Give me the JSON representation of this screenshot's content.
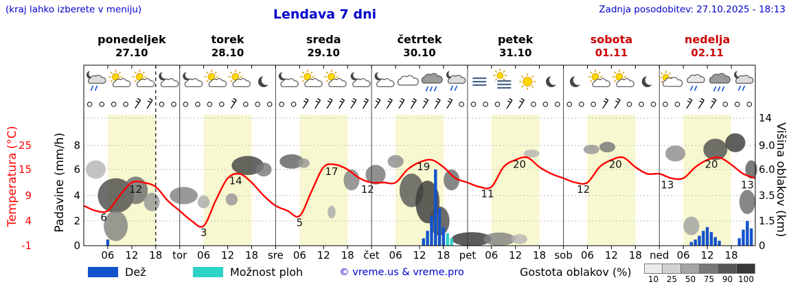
{
  "header": {
    "hint": "(kraj lahko izberete v meniju)",
    "title": "Lendava 7 dni",
    "updated": "Zadnja posodobitev: 27.10.2025 - 18:13"
  },
  "axis_titles": {
    "left_temp": "Temperatura (°C)",
    "left_precip": "Padavine (mm/h)",
    "right_height": "Višina oblakov (km)"
  },
  "days": [
    {
      "name": "ponedeljek",
      "date": "27.10",
      "weekend": false
    },
    {
      "name": "torek",
      "date": "28.10",
      "weekend": false
    },
    {
      "name": "sreda",
      "date": "29.10",
      "weekend": false
    },
    {
      "name": "četrtek",
      "date": "30.10",
      "weekend": false
    },
    {
      "name": "petek",
      "date": "31.10",
      "weekend": false
    },
    {
      "name": "sobota",
      "date": "01.11",
      "weekend": true
    },
    {
      "name": "nedelja",
      "date": "02.11",
      "weekend": true
    }
  ],
  "x_axis": {
    "hour_labels": [
      "06",
      "12",
      "18"
    ],
    "day_boundaries": [
      "tor",
      "sre",
      "čet",
      "pet",
      "sob",
      "ned"
    ]
  },
  "legend": {
    "rain_label": "Dež",
    "showers_label": "Možnost ploh",
    "copyright": "© vreme.us & vreme.pro",
    "density_label": "Gostota oblakov (%)",
    "density_levels": [
      "10",
      "25",
      "50",
      "75",
      "90",
      "100"
    ],
    "density_colors": [
      "#ebebeb",
      "#d2d2d2",
      "#a6a6a6",
      "#787878",
      "#555555",
      "#383838"
    ]
  },
  "colors": {
    "accent_blue": "#0000cc",
    "weekend_red": "#cc0000",
    "temperature": "#ff0000",
    "rain": "#1353cc",
    "showers": "#2ed3c7",
    "band_yellow": "#f8f8d0"
  },
  "chart_data": {
    "type": "line",
    "title": "Lendava 7 dni",
    "x_range_hours": [
      0,
      168
    ],
    "now_hour": 18,
    "temp_axis_ticks": [
      25,
      15,
      9,
      4,
      -1
    ],
    "precip_axis_ticks": [
      8,
      6,
      4,
      2,
      0
    ],
    "height_axis_ticks": [
      {
        "label": "14",
        "v": 14
      },
      {
        "label": "9.0",
        "v": 9
      },
      {
        "label": "6.0",
        "v": 6
      },
      {
        "label": "3.5",
        "v": 3.5
      },
      {
        "label": "1.5",
        "v": 1.5
      },
      {
        "label": "0",
        "v": 0
      }
    ],
    "temperature_points": [
      [
        0,
        7
      ],
      [
        3,
        6
      ],
      [
        6,
        6
      ],
      [
        9,
        9
      ],
      [
        12,
        12
      ],
      [
        15,
        12
      ],
      [
        18,
        11
      ],
      [
        21,
        8
      ],
      [
        24,
        6
      ],
      [
        27,
        4
      ],
      [
        30,
        3
      ],
      [
        33,
        8
      ],
      [
        36,
        13
      ],
      [
        39,
        14
      ],
      [
        42,
        12
      ],
      [
        45,
        9
      ],
      [
        48,
        7
      ],
      [
        51,
        6
      ],
      [
        54,
        5
      ],
      [
        57,
        10
      ],
      [
        60,
        16
      ],
      [
        63,
        17
      ],
      [
        66,
        15
      ],
      [
        69,
        13
      ],
      [
        72,
        12
      ],
      [
        75,
        12
      ],
      [
        78,
        12
      ],
      [
        81,
        15
      ],
      [
        84,
        18
      ],
      [
        87,
        19
      ],
      [
        90,
        16
      ],
      [
        93,
        13
      ],
      [
        96,
        12
      ],
      [
        99,
        11
      ],
      [
        102,
        11
      ],
      [
        105,
        16
      ],
      [
        108,
        19
      ],
      [
        111,
        20
      ],
      [
        114,
        16
      ],
      [
        117,
        14
      ],
      [
        120,
        13
      ],
      [
        123,
        12
      ],
      [
        126,
        12
      ],
      [
        129,
        16
      ],
      [
        132,
        19
      ],
      [
        135,
        20
      ],
      [
        138,
        16
      ],
      [
        141,
        14
      ],
      [
        144,
        14
      ],
      [
        147,
        13
      ],
      [
        150,
        13
      ],
      [
        153,
        16
      ],
      [
        156,
        19
      ],
      [
        159,
        20
      ],
      [
        162,
        17
      ],
      [
        165,
        14
      ],
      [
        168,
        13
      ]
    ],
    "temperature_annotations": [
      [
        5,
        6
      ],
      [
        13,
        12
      ],
      [
        30,
        3
      ],
      [
        38,
        14
      ],
      [
        54,
        5
      ],
      [
        62,
        17
      ],
      [
        71,
        12
      ],
      [
        85,
        19
      ],
      [
        101,
        11
      ],
      [
        109,
        20
      ],
      [
        125,
        12
      ],
      [
        133,
        20
      ],
      [
        146,
        13
      ],
      [
        157,
        20
      ],
      [
        166,
        13
      ]
    ],
    "rain_bars": [
      [
        6,
        0.5
      ],
      [
        85,
        0.6
      ],
      [
        86,
        1.2
      ],
      [
        87,
        2.4
      ],
      [
        88,
        6.0
      ],
      [
        89,
        3.0
      ],
      [
        90,
        1.5
      ],
      [
        152,
        0.3
      ],
      [
        153,
        0.5
      ],
      [
        154,
        0.8
      ],
      [
        155,
        1.2
      ],
      [
        156,
        1.5
      ],
      [
        157,
        1.1
      ],
      [
        158,
        0.7
      ],
      [
        159,
        0.4
      ],
      [
        164,
        0.6
      ],
      [
        165,
        1.3
      ],
      [
        166,
        2.0
      ],
      [
        167,
        1.4
      ]
    ],
    "shower_bars": [
      [
        91,
        1.0
      ],
      [
        92,
        0.6
      ]
    ],
    "clouds": [
      [
        3,
        6,
        5,
        2,
        30
      ],
      [
        8,
        3.5,
        9,
        3,
        80
      ],
      [
        8,
        1.2,
        6,
        2,
        55
      ],
      [
        13,
        4,
        6,
        2.5,
        65
      ],
      [
        17,
        3,
        4,
        1.5,
        45
      ],
      [
        25,
        3.5,
        7,
        1.5,
        55
      ],
      [
        30,
        3,
        3,
        1,
        35
      ],
      [
        37,
        3.2,
        3,
        1,
        45
      ],
      [
        41,
        6.5,
        8,
        2.2,
        85
      ],
      [
        45,
        6,
        4,
        1.5,
        60
      ],
      [
        52,
        7,
        6,
        1.8,
        70
      ],
      [
        55,
        6.8,
        3,
        1.2,
        45
      ],
      [
        62,
        2.2,
        2,
        1,
        35
      ],
      [
        67,
        5,
        4,
        2,
        55
      ],
      [
        73,
        5.5,
        5,
        2,
        60
      ],
      [
        78,
        7,
        4,
        1.6,
        50
      ],
      [
        82,
        4,
        6,
        3,
        75
      ],
      [
        86,
        3,
        6,
        3.5,
        88
      ],
      [
        89,
        1.5,
        5,
        2,
        80
      ],
      [
        92,
        5,
        4,
        2,
        65
      ],
      [
        97,
        0.4,
        10,
        0.9,
        90
      ],
      [
        104,
        0.4,
        8,
        0.8,
        55
      ],
      [
        109,
        0.4,
        4,
        0.6,
        30
      ],
      [
        112,
        8,
        4,
        1,
        30
      ],
      [
        127,
        8.5,
        4,
        1.2,
        45
      ],
      [
        131,
        8.8,
        4,
        1.5,
        60
      ],
      [
        148,
        8,
        5,
        2,
        50
      ],
      [
        152,
        1.2,
        4,
        1.2,
        40
      ],
      [
        158,
        8.5,
        6,
        3,
        78
      ],
      [
        163,
        9.5,
        5,
        3,
        88
      ],
      [
        166,
        3,
        4,
        2,
        65
      ],
      [
        167,
        6,
        3,
        2,
        72
      ]
    ],
    "weather_icons": [
      "cloud-moon-rain",
      "sun-cloud",
      "sun-cloud",
      "cloud-moon",
      "cloud-moon",
      "sun-cloud",
      "sun-cloud",
      "moon",
      "cloud-moon",
      "sun-cloud",
      "sun-cloud",
      "cloud-moon",
      "cloud-moon",
      "cloud",
      "cloud-rain-heavy",
      "cloud-moon-rain",
      "fog",
      "fog-sun",
      "sun",
      "moon",
      "moon",
      "sun-cloud",
      "sun-cloud",
      "moon",
      "cloud-sun",
      "cloud-rain",
      "cloud-rain-heavy",
      "cloud-moon-rain"
    ],
    "wind_flag_slots": [
      4,
      5,
      12,
      18,
      19,
      20,
      21,
      22,
      23,
      24,
      25,
      26,
      27,
      28,
      29,
      30,
      35,
      36,
      43,
      44,
      50,
      51,
      52
    ]
  }
}
